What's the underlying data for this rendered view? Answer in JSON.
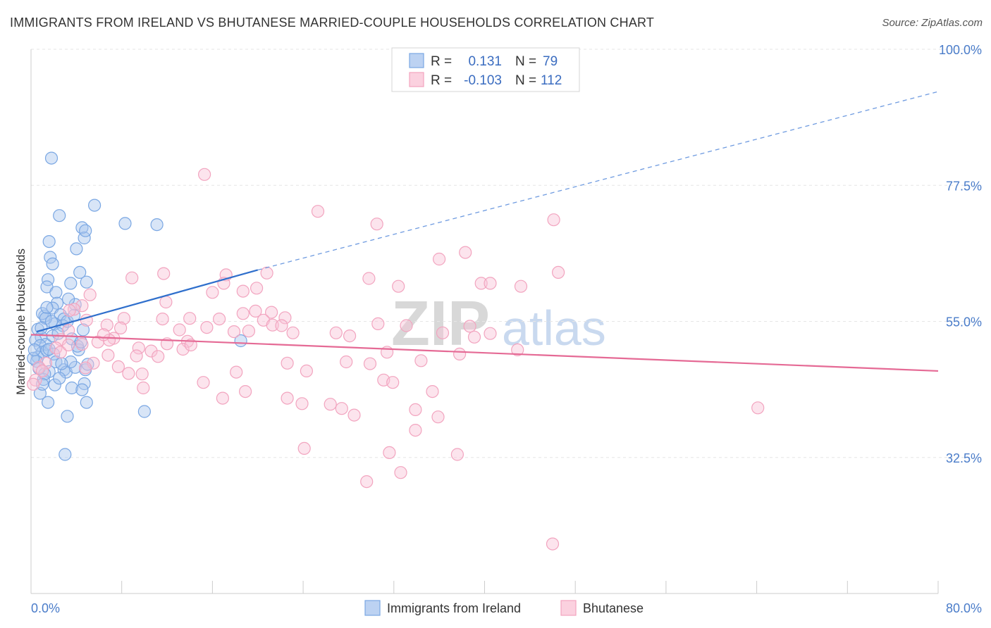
{
  "title": "IMMIGRANTS FROM IRELAND VS BHUTANESE MARRIED-COUPLE HOUSEHOLDS CORRELATION CHART",
  "source": "Source: ZipAtlas.com",
  "watermark": {
    "zip": "ZIP",
    "atlas": "atlas"
  },
  "colors": {
    "ireland": "#7aa7e3",
    "ireland_line": "#2f6fcc",
    "bhutanese": "#f2a4bf",
    "bhutanese_line": "#e56a95",
    "axis_label": "#4a7cc9"
  },
  "legend": {
    "rows": [
      {
        "r_label": "R =",
        "r_value": "0.131",
        "n_label": "N =",
        "n_value": "79"
      },
      {
        "r_label": "R =",
        "r_value": "-0.103",
        "n_label": "N =",
        "n_value": "112"
      }
    ]
  },
  "bottom_legend": [
    "Immigrants from Ireland",
    "Bhutanese"
  ],
  "chart_data": {
    "type": "scatter",
    "ylabel": "Married-couple Households",
    "xlim": [
      0,
      80
    ],
    "ylim": [
      10,
      100
    ],
    "x_tick_labels": [
      "0.0%",
      "80.0%"
    ],
    "y_ticks": [
      100,
      77.5,
      55,
      32.5
    ],
    "y_tick_labels": [
      "100.0%",
      "77.5%",
      "55.0%",
      "32.5%"
    ],
    "grid": true,
    "legend_position": "top-center",
    "series": [
      {
        "name": "Immigrants from Ireland",
        "trend": {
          "x": [
            0.5,
            20.0
          ],
          "y": [
            53.3,
            63.5
          ],
          "dashed_extension_to": [
            80,
            93.0
          ]
        },
        "points": [
          [
            1.8,
            82.0
          ],
          [
            1.6,
            68.2
          ],
          [
            1.7,
            65.6
          ],
          [
            1.9,
            64.5
          ],
          [
            1.5,
            61.9
          ],
          [
            1.4,
            60.7
          ],
          [
            2.2,
            59.8
          ],
          [
            2.3,
            58.0
          ],
          [
            1.9,
            57.2
          ],
          [
            2.6,
            56.1
          ],
          [
            2.9,
            55.4
          ],
          [
            2.1,
            54.6
          ],
          [
            2.8,
            54.3
          ],
          [
            1.2,
            55.9
          ],
          [
            1.0,
            56.3
          ],
          [
            1.3,
            55.5
          ],
          [
            1.8,
            55.0
          ],
          [
            0.6,
            53.7
          ],
          [
            0.9,
            52.4
          ],
          [
            1.3,
            51.2
          ],
          [
            1.9,
            52.6
          ],
          [
            0.4,
            51.9
          ],
          [
            0.8,
            51.0
          ],
          [
            1.0,
            49.9
          ],
          [
            0.6,
            49.1
          ],
          [
            0.5,
            48.4
          ],
          [
            0.2,
            48.9
          ],
          [
            1.4,
            50.2
          ],
          [
            2.0,
            49.6
          ],
          [
            2.2,
            48.3
          ],
          [
            2.9,
            47.0
          ],
          [
            3.1,
            46.6
          ],
          [
            1.6,
            46.7
          ],
          [
            1.1,
            45.4
          ],
          [
            2.1,
            44.5
          ],
          [
            3.6,
            44.0
          ],
          [
            0.8,
            43.1
          ],
          [
            1.5,
            41.6
          ],
          [
            4.5,
            70.5
          ],
          [
            4.7,
            68.8
          ],
          [
            4.0,
            67.0
          ],
          [
            4.9,
            61.5
          ],
          [
            4.3,
            63.1
          ],
          [
            3.5,
            61.3
          ],
          [
            3.9,
            57.8
          ],
          [
            3.2,
            55.0
          ],
          [
            3.6,
            52.1
          ],
          [
            4.2,
            50.3
          ],
          [
            4.1,
            50.9
          ],
          [
            3.9,
            47.4
          ],
          [
            4.8,
            47.0
          ],
          [
            4.7,
            44.7
          ],
          [
            4.5,
            43.7
          ],
          [
            4.9,
            41.6
          ],
          [
            5.0,
            47.9
          ],
          [
            3.5,
            48.3
          ],
          [
            3.2,
            39.3
          ],
          [
            4.8,
            70.0
          ],
          [
            5.6,
            74.2
          ],
          [
            8.3,
            71.2
          ],
          [
            11.1,
            71.0
          ],
          [
            3.0,
            33.0
          ],
          [
            10.0,
            40.1
          ],
          [
            18.5,
            51.8
          ],
          [
            2.5,
            72.5
          ],
          [
            1.4,
            57.3
          ],
          [
            0.9,
            53.9
          ],
          [
            2.4,
            53.0
          ],
          [
            2.7,
            48.0
          ],
          [
            3.8,
            56.0
          ],
          [
            4.4,
            51.6
          ],
          [
            1.6,
            50.4
          ],
          [
            2.5,
            45.6
          ],
          [
            0.7,
            47.2
          ],
          [
            1.2,
            46.3
          ],
          [
            3.3,
            58.7
          ],
          [
            0.3,
            50.3
          ],
          [
            4.6,
            53.6
          ],
          [
            1.0,
            44.6
          ]
        ]
      },
      {
        "name": "Bhutanese",
        "trend": {
          "x": [
            0,
            80
          ],
          "y": [
            52.8,
            46.8
          ]
        },
        "points": [
          [
            15.3,
            79.3
          ],
          [
            25.3,
            73.2
          ],
          [
            30.5,
            71.1
          ],
          [
            46.1,
            71.8
          ],
          [
            29.8,
            62.1
          ],
          [
            38.3,
            66.4
          ],
          [
            36.0,
            65.3
          ],
          [
            46.5,
            63.1
          ],
          [
            20.8,
            63.0
          ],
          [
            17.2,
            62.7
          ],
          [
            17.0,
            61.3
          ],
          [
            11.7,
            62.9
          ],
          [
            8.9,
            62.2
          ],
          [
            11.9,
            58.2
          ],
          [
            39.7,
            61.3
          ],
          [
            40.5,
            61.3
          ],
          [
            43.2,
            60.8
          ],
          [
            32.4,
            60.8
          ],
          [
            18.7,
            60.0
          ],
          [
            16.0,
            59.8
          ],
          [
            19.8,
            56.7
          ],
          [
            21.2,
            56.5
          ],
          [
            18.7,
            56.3
          ],
          [
            20.5,
            55.2
          ],
          [
            22.4,
            55.6
          ],
          [
            21.3,
            54.4
          ],
          [
            22.1,
            54.3
          ],
          [
            30.6,
            54.6
          ],
          [
            38.7,
            54.2
          ],
          [
            33.1,
            54.3
          ],
          [
            8.2,
            55.5
          ],
          [
            11.6,
            55.4
          ],
          [
            14.0,
            55.5
          ],
          [
            16.6,
            55.4
          ],
          [
            15.5,
            54.0
          ],
          [
            13.1,
            53.6
          ],
          [
            17.9,
            53.3
          ],
          [
            19.2,
            53.4
          ],
          [
            23.1,
            53.1
          ],
          [
            26.9,
            53.1
          ],
          [
            40.5,
            53.0
          ],
          [
            36.3,
            53.1
          ],
          [
            39.1,
            52.4
          ],
          [
            13.8,
            51.7
          ],
          [
            12.0,
            51.3
          ],
          [
            13.4,
            50.4
          ],
          [
            14.1,
            51.1
          ],
          [
            9.5,
            50.6
          ],
          [
            10.6,
            50.1
          ],
          [
            11.2,
            49.2
          ],
          [
            9.3,
            49.3
          ],
          [
            28.1,
            52.6
          ],
          [
            31.4,
            49.9
          ],
          [
            37.8,
            49.6
          ],
          [
            42.9,
            50.3
          ],
          [
            6.7,
            54.4
          ],
          [
            7.3,
            52.2
          ],
          [
            7.9,
            53.9
          ],
          [
            6.9,
            51.9
          ],
          [
            5.9,
            51.6
          ],
          [
            6.8,
            49.4
          ],
          [
            5.5,
            48.1
          ],
          [
            4.8,
            47.3
          ],
          [
            4.9,
            55.2
          ],
          [
            4.5,
            57.6
          ],
          [
            5.2,
            59.4
          ],
          [
            3.8,
            57.0
          ],
          [
            3.4,
            56.8
          ],
          [
            3.3,
            53.5
          ],
          [
            2.6,
            52.0
          ],
          [
            2.2,
            50.6
          ],
          [
            1.3,
            48.1
          ],
          [
            0.7,
            47.4
          ],
          [
            1.0,
            46.8
          ],
          [
            0.4,
            45.3
          ],
          [
            0.2,
            44.6
          ],
          [
            2.6,
            49.9
          ],
          [
            3.3,
            51.1
          ],
          [
            4.5,
            51.2
          ],
          [
            7.7,
            47.5
          ],
          [
            8.6,
            46.4
          ],
          [
            9.8,
            46.3
          ],
          [
            22.6,
            48.1
          ],
          [
            24.3,
            46.8
          ],
          [
            27.8,
            48.3
          ],
          [
            29.9,
            48.0
          ],
          [
            34.4,
            48.5
          ],
          [
            31.1,
            45.3
          ],
          [
            31.9,
            44.9
          ],
          [
            15.2,
            44.9
          ],
          [
            18.1,
            46.6
          ],
          [
            16.9,
            42.3
          ],
          [
            18.9,
            43.4
          ],
          [
            22.6,
            42.3
          ],
          [
            23.9,
            41.4
          ],
          [
            26.4,
            41.3
          ],
          [
            27.4,
            40.6
          ],
          [
            28.5,
            39.5
          ],
          [
            35.4,
            43.4
          ],
          [
            33.9,
            40.4
          ],
          [
            35.9,
            39.2
          ],
          [
            33.9,
            37.0
          ],
          [
            24.1,
            34.0
          ],
          [
            31.6,
            33.3
          ],
          [
            37.6,
            33.0
          ],
          [
            32.6,
            30.0
          ],
          [
            29.6,
            28.5
          ],
          [
            46.0,
            18.2
          ],
          [
            64.1,
            40.7
          ],
          [
            9.9,
            44.0
          ],
          [
            6.4,
            52.8
          ],
          [
            19.9,
            60.5
          ]
        ]
      }
    ]
  }
}
